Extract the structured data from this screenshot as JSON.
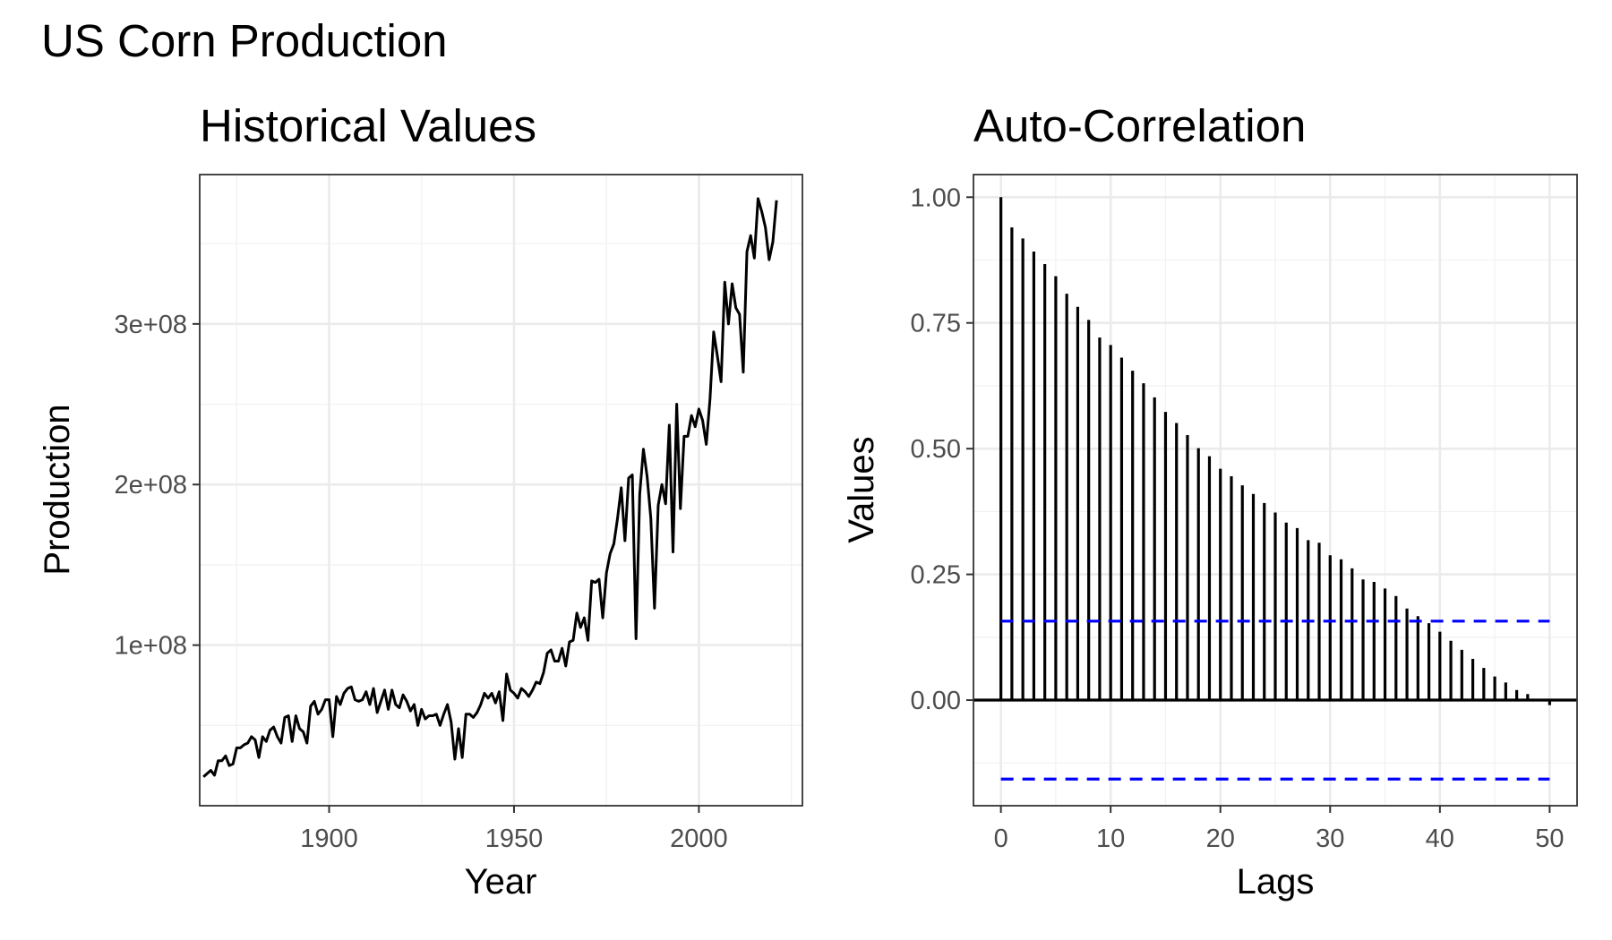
{
  "figure": {
    "title": "US Corn Production"
  },
  "chart_data": [
    {
      "type": "line",
      "title": "Historical Values",
      "xlabel": "Year",
      "ylabel": "Production",
      "xlim": [
        1865,
        2028
      ],
      "ylim": [
        0,
        393000000
      ],
      "x_ticks": [
        1900,
        1950,
        2000
      ],
      "x_tick_labels": [
        "1900",
        "1950",
        "2000"
      ],
      "y_ticks": [
        100000000,
        200000000,
        300000000
      ],
      "y_tick_labels": [
        "1e+08",
        "2e+08",
        "3e+08"
      ],
      "grid": true,
      "series": [
        {
          "color": "#000000",
          "x": [
            1866,
            1867,
            1868,
            1869,
            1870,
            1871,
            1872,
            1873,
            1874,
            1875,
            1876,
            1877,
            1878,
            1879,
            1880,
            1881,
            1882,
            1883,
            1884,
            1885,
            1886,
            1887,
            1888,
            1889,
            1890,
            1891,
            1892,
            1893,
            1894,
            1895,
            1896,
            1897,
            1898,
            1899,
            1900,
            1901,
            1902,
            1903,
            1904,
            1905,
            1906,
            1907,
            1908,
            1909,
            1910,
            1911,
            1912,
            1913,
            1914,
            1915,
            1916,
            1917,
            1918,
            1919,
            1920,
            1921,
            1922,
            1923,
            1924,
            1925,
            1926,
            1927,
            1928,
            1929,
            1930,
            1931,
            1932,
            1933,
            1934,
            1935,
            1936,
            1937,
            1938,
            1939,
            1940,
            1941,
            1942,
            1943,
            1944,
            1945,
            1946,
            1947,
            1948,
            1949,
            1950,
            1951,
            1952,
            1953,
            1954,
            1955,
            1956,
            1957,
            1958,
            1959,
            1960,
            1961,
            1962,
            1963,
            1964,
            1965,
            1966,
            1967,
            1968,
            1969,
            1970,
            1971,
            1972,
            1973,
            1974,
            1975,
            1976,
            1977,
            1978,
            1979,
            1980,
            1981,
            1982,
            1983,
            1984,
            1985,
            1986,
            1987,
            1988,
            1989,
            1990,
            1991,
            1992,
            1993,
            1994,
            1995,
            1996,
            1997,
            1998,
            1999,
            2000,
            2001,
            2002,
            2003,
            2004,
            2005,
            2006,
            2007,
            2008,
            2009,
            2010,
            2011,
            2012,
            2013,
            2014,
            2015,
            2016,
            2017,
            2018,
            2019,
            2020,
            2021
          ],
          "y": [
            18000000,
            20000000,
            22000000,
            19000000,
            28000000,
            28000000,
            31000000,
            25000000,
            26000000,
            36000000,
            36000000,
            38000000,
            39000000,
            43000000,
            41000000,
            30000000,
            43000000,
            40000000,
            47000000,
            49000000,
            43000000,
            39000000,
            55000000,
            56000000,
            40000000,
            56000000,
            48000000,
            46000000,
            39000000,
            62000000,
            65000000,
            57000000,
            60000000,
            66000000,
            66000000,
            43000000,
            68000000,
            63000000,
            70000000,
            73000000,
            74000000,
            66000000,
            65000000,
            66000000,
            71000000,
            63000000,
            73000000,
            58000000,
            65000000,
            72000000,
            60000000,
            72000000,
            63000000,
            61000000,
            69000000,
            65000000,
            59000000,
            63000000,
            50000000,
            60000000,
            54000000,
            56000000,
            56000000,
            57000000,
            50000000,
            57000000,
            63000000,
            52000000,
            29000000,
            48000000,
            30000000,
            57000000,
            57000000,
            55000000,
            58000000,
            63000000,
            70000000,
            67000000,
            70000000,
            64000000,
            71000000,
            53000000,
            82000000,
            72000000,
            70000000,
            67000000,
            73000000,
            71000000,
            68000000,
            72000000,
            77000000,
            76000000,
            83000000,
            95000000,
            97000000,
            90000000,
            90000000,
            98000000,
            87000000,
            102000000,
            103000000,
            120000000,
            111000000,
            117000000,
            103000000,
            140000000,
            139000000,
            141000000,
            117000000,
            145000000,
            157000000,
            163000000,
            179000000,
            198000000,
            165000000,
            204000000,
            206000000,
            104000000,
            194000000,
            222000000,
            205000000,
            179000000,
            123000000,
            187000000,
            200000000,
            188000000,
            237000000,
            158000000,
            250000000,
            185000000,
            230000000,
            230000000,
            243000000,
            236000000,
            247000000,
            240000000,
            225000000,
            253000000,
            295000000,
            280000000,
            264000000,
            326000000,
            300000000,
            325000000,
            310000000,
            306000000,
            270000000,
            345000000,
            355000000,
            341000000,
            378000000,
            370000000,
            360000000,
            340000000,
            351000000,
            377000000
          ]
        }
      ]
    },
    {
      "type": "bar",
      "title": "Auto-Correlation",
      "xlabel": "Lags",
      "ylabel": "Values",
      "xlim": [
        -2.5,
        52.5
      ],
      "ylim": [
        -0.21,
        1.045
      ],
      "x_ticks": [
        0,
        10,
        20,
        30,
        40,
        50
      ],
      "x_tick_labels": [
        "0",
        "10",
        "20",
        "30",
        "40",
        "50"
      ],
      "y_ticks": [
        0,
        0.25,
        0.5,
        0.75,
        1
      ],
      "y_tick_labels": [
        "0.00",
        "0.25",
        "0.50",
        "0.75",
        "1.00"
      ],
      "grid": true,
      "lags": [
        0,
        1,
        2,
        3,
        4,
        5,
        6,
        7,
        8,
        9,
        10,
        11,
        12,
        13,
        14,
        15,
        16,
        17,
        18,
        19,
        20,
        21,
        22,
        23,
        24,
        25,
        26,
        27,
        28,
        29,
        30,
        31,
        32,
        33,
        34,
        35,
        36,
        37,
        38,
        39,
        40,
        41,
        42,
        43,
        44,
        45,
        46,
        47,
        48,
        49,
        50
      ],
      "values": [
        1.0,
        0.94,
        0.918,
        0.892,
        0.867,
        0.843,
        0.808,
        0.782,
        0.756,
        0.721,
        0.706,
        0.681,
        0.655,
        0.63,
        0.602,
        0.573,
        0.551,
        0.527,
        0.501,
        0.485,
        0.46,
        0.445,
        0.427,
        0.41,
        0.392,
        0.373,
        0.353,
        0.342,
        0.318,
        0.313,
        0.288,
        0.28,
        0.262,
        0.24,
        0.235,
        0.222,
        0.207,
        0.182,
        0.167,
        0.153,
        0.136,
        0.118,
        0.1,
        0.082,
        0.064,
        0.047,
        0.035,
        0.02,
        0.012,
        0.0,
        -0.01
      ],
      "confidence_band": {
        "upper": 0.157,
        "lower": -0.157,
        "color": "#0000FF",
        "style": "dashed"
      },
      "zero_line": true
    }
  ]
}
